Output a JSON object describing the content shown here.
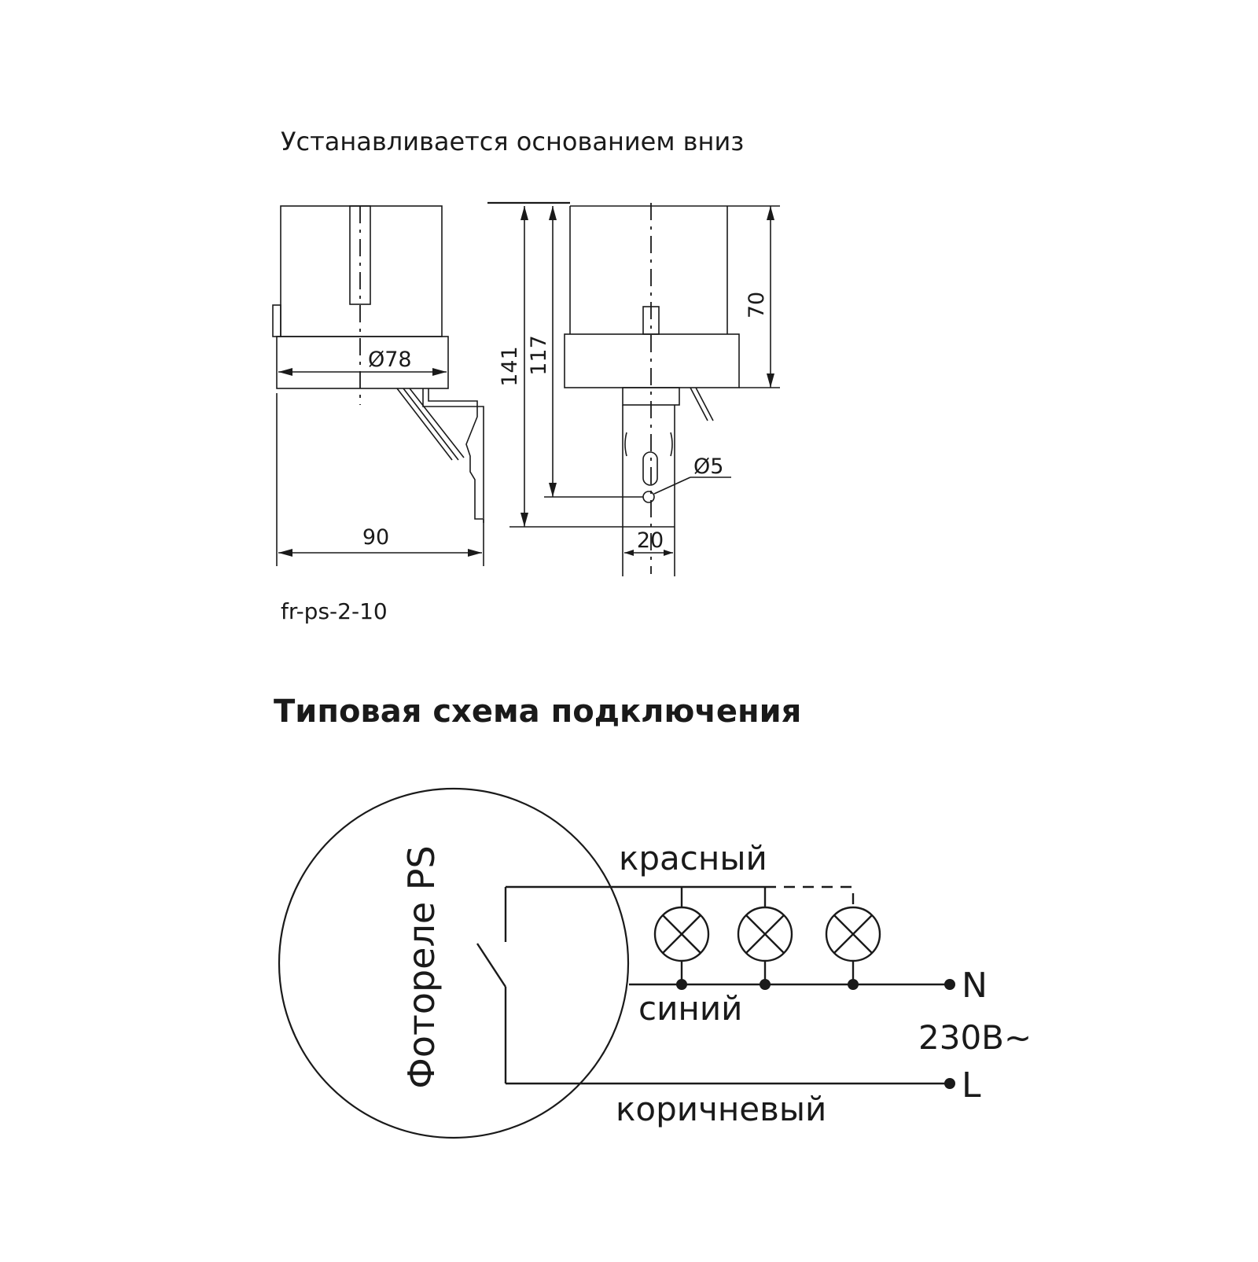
{
  "drawing": {
    "install_note": "Устанавливается основанием вниз",
    "model": "fr-ps-2-10",
    "dimensions": {
      "diameter_body": "Ø78",
      "width_total": "90",
      "height_total": "141",
      "height_to_hole": "117",
      "height_body": "70",
      "hole_diameter": "Ø5",
      "bracket_width": "20"
    }
  },
  "wiring": {
    "title": "Типовая схема подключения",
    "relay_label": "Фотореле PS",
    "wire_red": "красный",
    "wire_blue": "синий",
    "wire_brown": "коричневый",
    "terminal_n": "N",
    "terminal_l": "L",
    "voltage": "230В~",
    "lamp_count": 3
  }
}
